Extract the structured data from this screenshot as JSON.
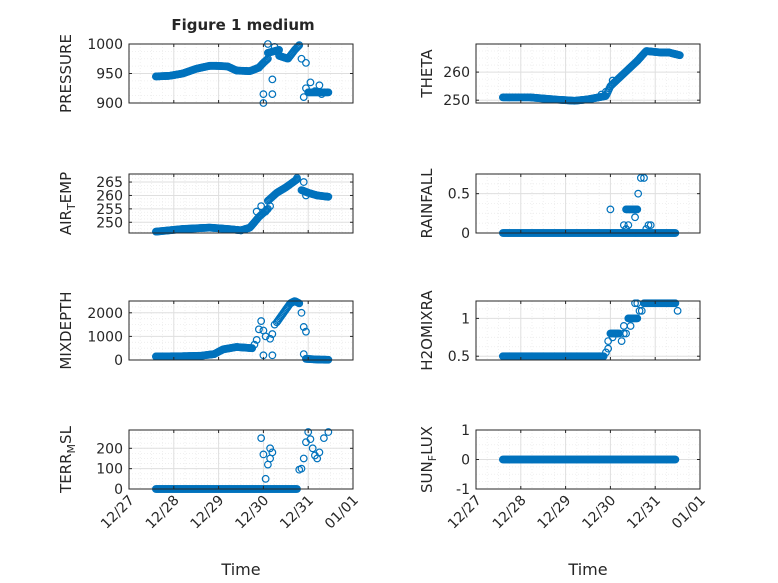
{
  "figure": {
    "title": "Figure 1 medium",
    "marker_color": "#0072BD",
    "axis_color": "#262626",
    "grid_color": "#dfdfdf",
    "minor_grid_color": "#ececec"
  },
  "chart_data": [
    {
      "type": "scatter",
      "ylabel": "PRESSURE",
      "ylim": [
        900,
        1000
      ],
      "yticks": [
        {
          "v": 900,
          "label": "900"
        },
        {
          "v": 950,
          "label": "950"
        },
        {
          "v": 1000,
          "label": "1000"
        }
      ],
      "show_xticklabels": false,
      "xlabel": "",
      "segments": [
        {
          "from": 0.6,
          "to": 1.95,
          "points": [
            [
              0.6,
              945
            ],
            [
              0.9,
              946
            ],
            [
              1.2,
              950
            ],
            [
              1.5,
              958
            ],
            [
              1.8,
              963
            ],
            [
              1.95,
              963
            ]
          ]
        },
        {
          "from": 1.95,
          "to": 2.9,
          "points": [
            [
              1.95,
              963
            ],
            [
              2.2,
              962
            ],
            [
              2.4,
              955
            ],
            [
              2.7,
              954
            ],
            [
              2.9,
              960
            ]
          ]
        },
        {
          "from": 2.9,
          "to": 3.1,
          "points": [
            [
              2.9,
              960
            ],
            [
              3.0,
              968
            ],
            [
              3.1,
              975
            ]
          ]
        },
        {
          "from": 3.1,
          "to": 3.35,
          "points": [
            [
              3.1,
              985
            ],
            [
              3.35,
              990
            ]
          ]
        },
        {
          "from": 3.35,
          "to": 3.8,
          "points": [
            [
              3.35,
              980
            ],
            [
              3.55,
              975
            ],
            [
              3.7,
              990
            ],
            [
              3.8,
              998
            ]
          ]
        },
        {
          "from": 4.0,
          "to": 4.45,
          "points": [
            [
              4.0,
              918
            ],
            [
              4.45,
              918
            ]
          ]
        }
      ],
      "extra_points": [
        [
          3.0,
          915
        ],
        [
          3.0,
          900
        ],
        [
          3.2,
          915
        ],
        [
          3.2,
          940
        ],
        [
          3.1,
          1000
        ],
        [
          3.25,
          995
        ],
        [
          3.85,
          975
        ],
        [
          3.95,
          968
        ],
        [
          3.95,
          925
        ],
        [
          3.9,
          910
        ],
        [
          4.05,
          935
        ],
        [
          4.15,
          920
        ],
        [
          4.25,
          930
        ],
        [
          4.3,
          915
        ]
      ]
    },
    {
      "type": "scatter",
      "ylabel": "THETA",
      "ylim": [
        249,
        270
      ],
      "yticks": [
        {
          "v": 250,
          "label": "250"
        },
        {
          "v": 260,
          "label": "260"
        }
      ],
      "show_xticklabels": false,
      "xlabel": "",
      "segments": [
        {
          "from": 0.6,
          "to": 2.5,
          "points": [
            [
              0.6,
              251
            ],
            [
              1.2,
              251
            ],
            [
              1.8,
              250.2
            ],
            [
              2.2,
              249.8
            ],
            [
              2.5,
              250.3
            ]
          ]
        },
        {
          "from": 2.5,
          "to": 3.6,
          "points": [
            [
              2.5,
              250.3
            ],
            [
              2.9,
              251.5
            ],
            [
              3.0,
              255
            ],
            [
              3.2,
              258
            ],
            [
              3.4,
              261
            ],
            [
              3.6,
              264
            ]
          ]
        },
        {
          "from": 3.6,
          "to": 4.3,
          "points": [
            [
              3.6,
              264
            ],
            [
              3.8,
              267.5
            ],
            [
              4.1,
              267
            ],
            [
              4.3,
              267
            ]
          ]
        },
        {
          "from": 4.3,
          "to": 4.55,
          "points": [
            [
              4.3,
              267
            ],
            [
              4.55,
              266
            ]
          ]
        }
      ],
      "extra_points": [
        [
          2.8,
          252
        ],
        [
          2.9,
          253
        ],
        [
          3.05,
          257
        ]
      ]
    },
    {
      "type": "scatter",
      "ylabel": "AIR_TEMP",
      "ylim": [
        246,
        268
      ],
      "yticks": [
        {
          "v": 250,
          "label": "250"
        },
        {
          "v": 255,
          "label": "255"
        },
        {
          "v": 260,
          "label": "260"
        },
        {
          "v": 265,
          "label": "265"
        }
      ],
      "show_xticklabels": false,
      "xlabel": "",
      "segments": [
        {
          "from": 0.6,
          "to": 2.5,
          "points": [
            [
              0.6,
              246.5
            ],
            [
              1.2,
              247.5
            ],
            [
              1.8,
              248
            ],
            [
              2.2,
              247.5
            ],
            [
              2.5,
              247
            ]
          ]
        },
        {
          "from": 2.5,
          "to": 3.1,
          "points": [
            [
              2.5,
              247
            ],
            [
              2.7,
              248
            ],
            [
              2.9,
              252
            ],
            [
              3.1,
              255
            ]
          ]
        },
        {
          "from": 3.1,
          "to": 3.75,
          "points": [
            [
              3.1,
              258
            ],
            [
              3.3,
              261
            ],
            [
              3.5,
              263
            ],
            [
              3.75,
              266
            ]
          ]
        },
        {
          "from": 3.85,
          "to": 4.45,
          "points": [
            [
              3.85,
              262
            ],
            [
              4.0,
              261
            ],
            [
              4.2,
              260
            ],
            [
              4.45,
              259.5
            ]
          ]
        }
      ],
      "extra_points": [
        [
          2.85,
          254
        ],
        [
          2.95,
          256
        ],
        [
          3.05,
          254
        ],
        [
          3.15,
          256
        ],
        [
          3.75,
          266.5
        ],
        [
          3.9,
          265
        ],
        [
          3.95,
          260
        ]
      ]
    },
    {
      "type": "scatter",
      "ylabel": "RAINFALL",
      "ylim": [
        0,
        0.75
      ],
      "yticks": [
        {
          "v": 0,
          "label": "0"
        },
        {
          "v": 0.5,
          "label": "0.5"
        }
      ],
      "show_xticklabels": false,
      "xlabel": "",
      "segments": [
        {
          "from": 0.6,
          "to": 4.45,
          "points": [
            [
              0.6,
              0
            ],
            [
              4.45,
              0
            ]
          ]
        },
        {
          "from": 3.35,
          "to": 3.6,
          "points": [
            [
              3.35,
              0.3
            ],
            [
              3.6,
              0.3
            ]
          ]
        }
      ],
      "extra_points": [
        [
          3.0,
          0.3
        ],
        [
          3.3,
          0.1
        ],
        [
          3.35,
          0.05
        ],
        [
          3.4,
          0.1
        ],
        [
          3.55,
          0.2
        ],
        [
          3.62,
          0.5
        ],
        [
          3.68,
          0.7
        ],
        [
          3.75,
          0.7
        ],
        [
          3.8,
          0.05
        ],
        [
          3.85,
          0.1
        ],
        [
          3.9,
          0.1
        ]
      ]
    },
    {
      "type": "scatter",
      "ylabel": "MIXDEPTH",
      "ylim": [
        0,
        2500
      ],
      "yticks": [
        {
          "v": 0,
          "label": "0"
        },
        {
          "v": 1000,
          "label": "1000"
        },
        {
          "v": 2000,
          "label": "2000"
        }
      ],
      "show_xticklabels": false,
      "xlabel": "",
      "segments": [
        {
          "from": 0.6,
          "to": 1.9,
          "points": [
            [
              0.6,
              150
            ],
            [
              1.2,
              160
            ],
            [
              1.6,
              180
            ],
            [
              1.9,
              250
            ]
          ]
        },
        {
          "from": 1.9,
          "to": 2.75,
          "points": [
            [
              1.9,
              250
            ],
            [
              2.1,
              450
            ],
            [
              2.4,
              550
            ],
            [
              2.75,
              500
            ]
          ]
        },
        {
          "from": 3.3,
          "to": 3.8,
          "points": [
            [
              3.3,
              1600
            ],
            [
              3.45,
              2000
            ],
            [
              3.6,
              2400
            ],
            [
              3.7,
              2500
            ],
            [
              3.8,
              2400
            ]
          ]
        },
        {
          "from": 3.95,
          "to": 4.45,
          "points": [
            [
              3.95,
              50
            ],
            [
              4.2,
              20
            ],
            [
              4.45,
              10
            ]
          ]
        }
      ],
      "extra_points": [
        [
          2.8,
          650
        ],
        [
          2.85,
          850
        ],
        [
          2.9,
          1300
        ],
        [
          2.95,
          1650
        ],
        [
          3.0,
          1250
        ],
        [
          3.05,
          1000
        ],
        [
          3.0,
          200
        ],
        [
          3.2,
          200
        ],
        [
          3.15,
          900
        ],
        [
          3.25,
          1500
        ],
        [
          3.2,
          1100
        ],
        [
          3.85,
          2000
        ],
        [
          3.9,
          1400
        ],
        [
          3.95,
          1200
        ],
        [
          3.9,
          250
        ]
      ]
    },
    {
      "type": "scatter",
      "ylabel": "H2OMIXRA",
      "ylim": [
        0.45,
        1.23
      ],
      "yticks": [
        {
          "v": 0.5,
          "label": "0.5"
        },
        {
          "v": 1,
          "label": "1"
        }
      ],
      "show_xticklabels": false,
      "xlabel": "",
      "segments": [
        {
          "from": 0.6,
          "to": 2.85,
          "points": [
            [
              0.6,
              0.5
            ],
            [
              2.85,
              0.5
            ]
          ]
        },
        {
          "from": 3.0,
          "to": 3.2,
          "points": [
            [
              3.0,
              0.8
            ],
            [
              3.2,
              0.8
            ]
          ]
        },
        {
          "from": 3.4,
          "to": 3.6,
          "points": [
            [
              3.4,
              1.0
            ],
            [
              3.6,
              1.0
            ]
          ]
        },
        {
          "from": 3.75,
          "to": 4.45,
          "points": [
            [
              3.75,
              1.2
            ],
            [
              4.45,
              1.2
            ]
          ]
        }
      ],
      "extra_points": [
        [
          2.9,
          0.55
        ],
        [
          2.95,
          0.6
        ],
        [
          2.95,
          0.7
        ],
        [
          3.05,
          0.75
        ],
        [
          3.25,
          0.7
        ],
        [
          3.3,
          0.8
        ],
        [
          3.3,
          0.9
        ],
        [
          3.35,
          0.8
        ],
        [
          3.45,
          0.9
        ],
        [
          3.55,
          1.2
        ],
        [
          3.6,
          1.2
        ],
        [
          3.65,
          1.1
        ],
        [
          3.7,
          1.1
        ],
        [
          4.5,
          1.1
        ]
      ]
    },
    {
      "type": "scatter",
      "ylabel": "TERR_MSL",
      "ylim": [
        0,
        290
      ],
      "yticks": [
        {
          "v": 0,
          "label": "0"
        },
        {
          "v": 100,
          "label": "100"
        },
        {
          "v": 200,
          "label": "200"
        }
      ],
      "show_xticklabels": true,
      "xlabel": "Time",
      "segments": [
        {
          "from": 0.6,
          "to": 3.75,
          "points": [
            [
              0.6,
              0
            ],
            [
              3.75,
              0
            ]
          ]
        }
      ],
      "extra_points": [
        [
          2.95,
          250
        ],
        [
          3.0,
          170
        ],
        [
          3.05,
          50
        ],
        [
          3.1,
          120
        ],
        [
          3.15,
          150
        ],
        [
          3.15,
          200
        ],
        [
          3.2,
          180
        ],
        [
          3.8,
          95
        ],
        [
          3.85,
          100
        ],
        [
          3.9,
          150
        ],
        [
          3.95,
          230
        ],
        [
          4.0,
          280
        ],
        [
          4.05,
          245
        ],
        [
          4.1,
          200
        ],
        [
          4.15,
          165
        ],
        [
          4.2,
          150
        ],
        [
          4.25,
          180
        ],
        [
          4.35,
          250
        ],
        [
          4.45,
          280
        ]
      ]
    },
    {
      "type": "scatter",
      "ylabel": "SUN_FLUX",
      "ylim": [
        -1,
        1
      ],
      "yticks": [
        {
          "v": -1,
          "label": "-1"
        },
        {
          "v": 0,
          "label": "0"
        },
        {
          "v": 1,
          "label": "1"
        }
      ],
      "show_xticklabels": true,
      "xlabel": "Time",
      "segments": [
        {
          "from": 0.6,
          "to": 4.45,
          "points": [
            [
              0.6,
              0
            ],
            [
              4.45,
              0
            ]
          ]
        }
      ],
      "extra_points": []
    }
  ],
  "xaxis": {
    "xlim": [
      0,
      5
    ],
    "ticks": [
      {
        "v": 0,
        "label": "12/27"
      },
      {
        "v": 1,
        "label": "12/28"
      },
      {
        "v": 2,
        "label": "12/29"
      },
      {
        "v": 3,
        "label": "12/30"
      },
      {
        "v": 4,
        "label": "12/31"
      },
      {
        "v": 5,
        "label": "01/01"
      }
    ]
  }
}
